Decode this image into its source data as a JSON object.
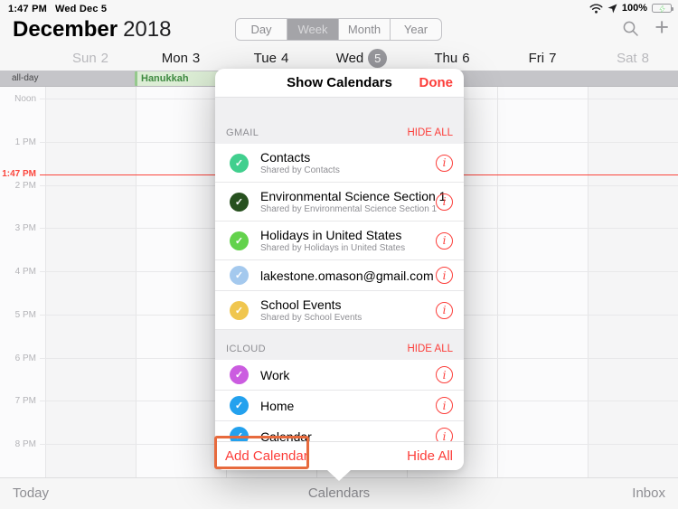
{
  "status_bar": {
    "time": "1:47 PM",
    "date": "Wed Dec 5",
    "battery_percent": "100%"
  },
  "header": {
    "month": "December",
    "year": "2018",
    "view_tabs": [
      {
        "label": "Day",
        "selected": false
      },
      {
        "label": "Week",
        "selected": true
      },
      {
        "label": "Month",
        "selected": false
      },
      {
        "label": "Year",
        "selected": false
      }
    ]
  },
  "week_header": {
    "days": [
      {
        "label": "Sun",
        "num": "2",
        "dim": true,
        "selected": false
      },
      {
        "label": "Mon",
        "num": "3",
        "dim": false,
        "selected": false
      },
      {
        "label": "Tue",
        "num": "4",
        "dim": false,
        "selected": false
      },
      {
        "label": "Wed",
        "num": "5",
        "dim": false,
        "selected": true
      },
      {
        "label": "Thu",
        "num": "6",
        "dim": false,
        "selected": false
      },
      {
        "label": "Fri",
        "num": "7",
        "dim": false,
        "selected": false
      },
      {
        "label": "Sat",
        "num": "8",
        "dim": true,
        "selected": false
      }
    ]
  },
  "all_day": {
    "label": "all-day",
    "event": {
      "title": "Hanukkah",
      "bg": "#dcedd5",
      "text": "#3f8a41"
    }
  },
  "time_grid": {
    "hours": [
      "Noon",
      "1 PM",
      "2 PM",
      "3 PM",
      "4 PM",
      "5 PM",
      "6 PM",
      "7 PM",
      "8 PM"
    ],
    "current_time_label": "1:47 PM",
    "current_time_color": "#fb453c"
  },
  "popover": {
    "title": "Show Calendars",
    "done_label": "Done",
    "sections": [
      {
        "name": "GMAIL",
        "action": "HIDE ALL",
        "items": [
          {
            "title": "Contacts",
            "subtitle": "Shared by Contacts",
            "color": "#41cf8e",
            "checked": true
          },
          {
            "title": "Environmental Science Section 1",
            "subtitle": "Shared by Environmental Science Section 1",
            "color": "#27511f",
            "checked": true
          },
          {
            "title": "Holidays in United States",
            "subtitle": "Shared by Holidays in United States",
            "color": "#63d24c",
            "checked": true
          },
          {
            "title": "lakestone.omason@gmail.com",
            "subtitle": "",
            "color": "#a4c9ee",
            "checked": true
          },
          {
            "title": "School Events",
            "subtitle": "Shared by School Events",
            "color": "#f0c64f",
            "checked": true
          }
        ]
      },
      {
        "name": "ICLOUD",
        "action": "HIDE ALL",
        "items": [
          {
            "title": "Work",
            "subtitle": "",
            "color": "#cb5ce0",
            "checked": true
          },
          {
            "title": "Home",
            "subtitle": "",
            "color": "#23a1ee",
            "checked": true
          },
          {
            "title": "Calendar",
            "subtitle": "",
            "color": "#23a1ee",
            "checked": true
          }
        ]
      }
    ],
    "footer": {
      "add_label": "Add Calendar",
      "hide_all_label": "Hide All"
    }
  },
  "toolbar": {
    "today": "Today",
    "calendars": "Calendars",
    "inbox": "Inbox"
  },
  "annotation": {
    "target": "Add Calendar",
    "color": "#e76a3d"
  },
  "colors": {
    "accent_red": "#fc3d39",
    "selected_day_badge": "#98989d",
    "allday_band": "#c5c5c9"
  }
}
